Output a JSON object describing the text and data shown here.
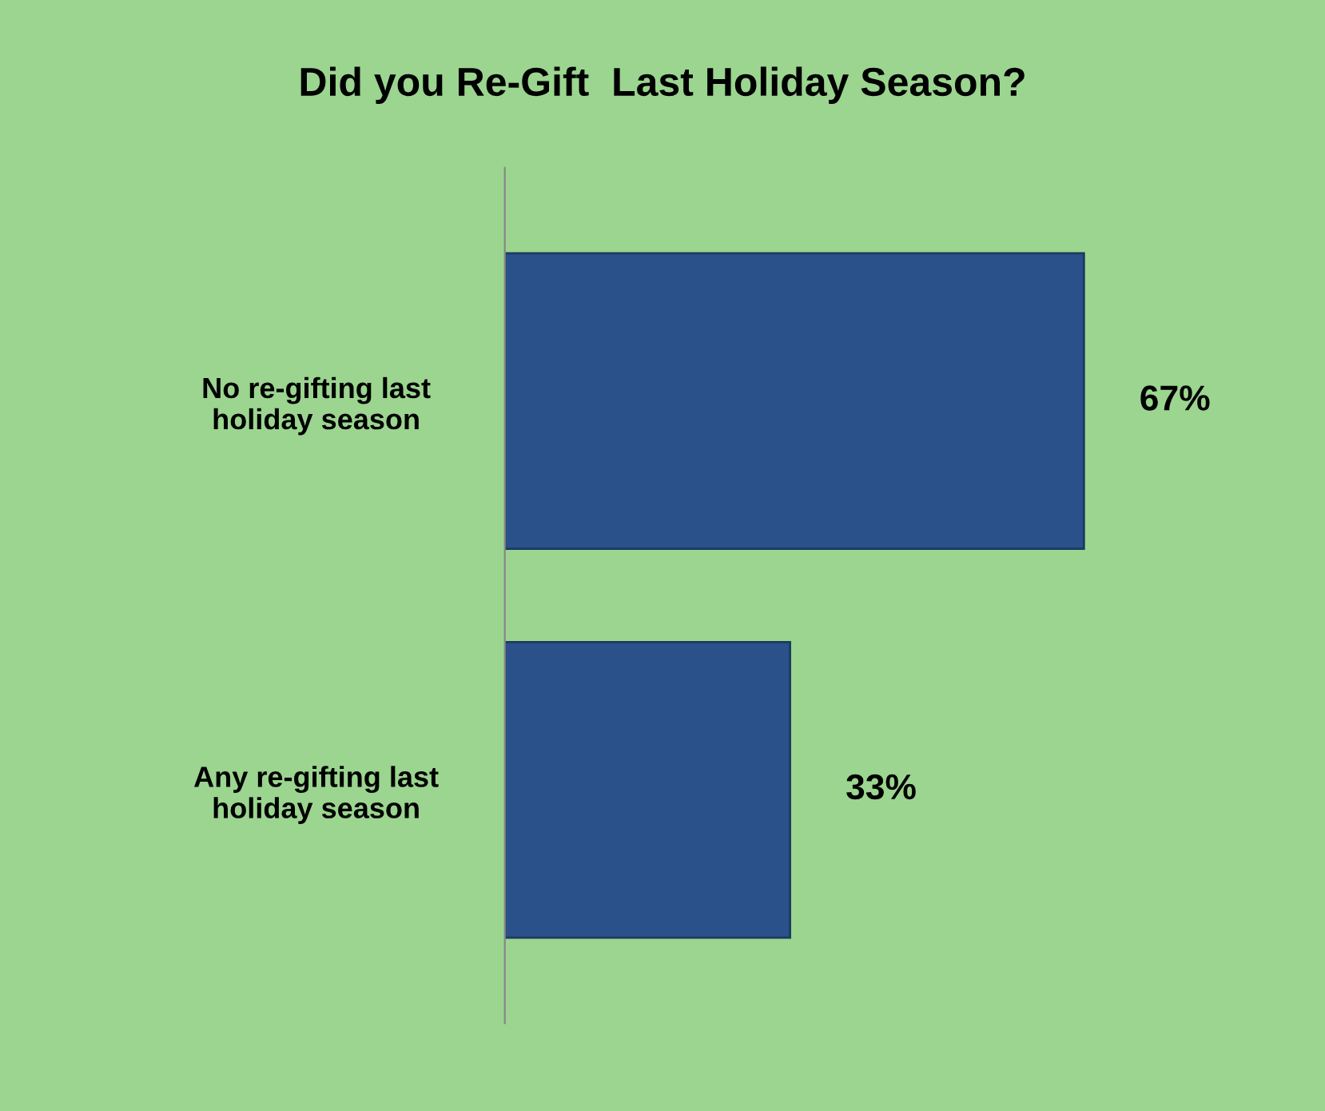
{
  "chart_data": {
    "type": "bar",
    "orientation": "horizontal",
    "title": "Did you Re-Gift  Last Holiday Season?",
    "categories": [
      "No re-gifting last\nholiday season",
      "Any re-gifting last\nholiday season"
    ],
    "values": [
      67,
      33
    ],
    "value_labels": [
      "67%",
      "33%"
    ],
    "color": "#2a5189"
  }
}
